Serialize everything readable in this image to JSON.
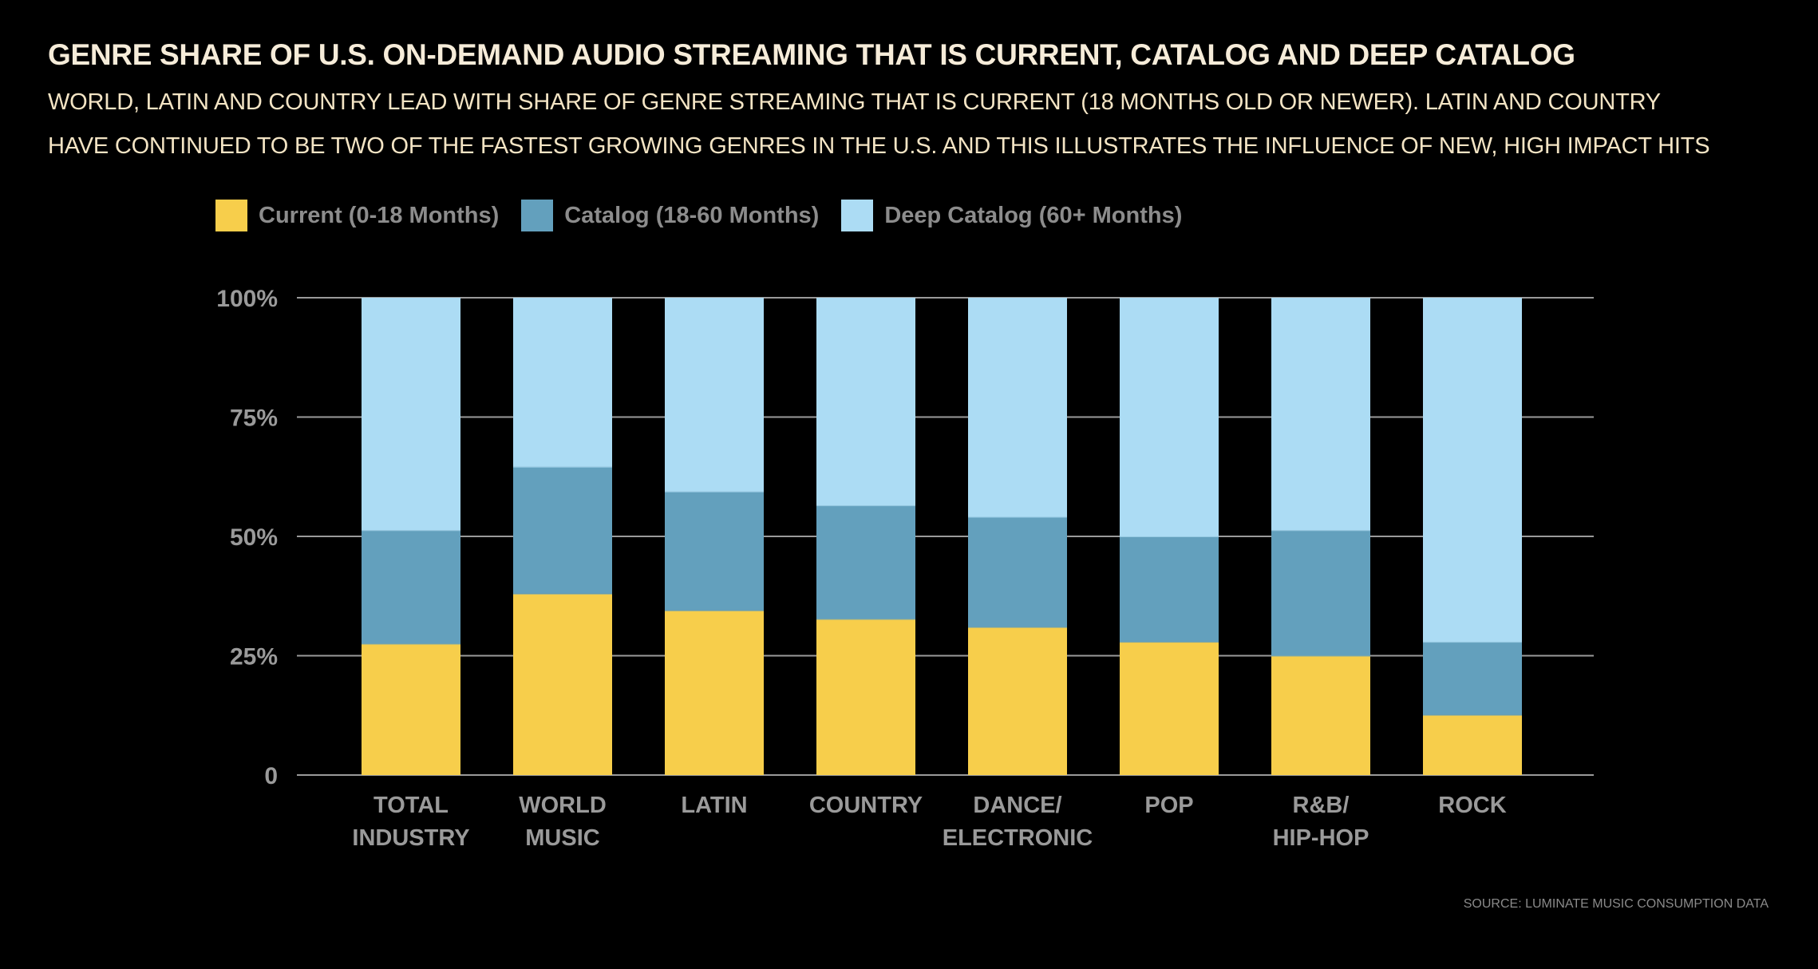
{
  "title": "GENRE SHARE OF U.S. ON-DEMAND AUDIO STREAMING THAT IS CURRENT, CATALOG AND DEEP CATALOG",
  "subtitle_lines": [
    "WORLD, LATIN AND COUNTRY LEAD WITH SHARE OF GENRE STREAMING THAT IS CURRENT (18 MONTHS OLD OR NEWER). LATIN AND COUNTRY",
    "HAVE CONTINUED TO BE TWO OF THE FASTEST GROWING GENRES IN THE U.S. AND THIS ILLUSTRATES THE INFLUENCE OF NEW, HIGH IMPACT HITS"
  ],
  "source": "SOURCE: LUMINATE MUSIC CONSUMPTION DATA",
  "chart_data": {
    "type": "bar",
    "stacked": true,
    "categories": [
      [
        "TOTAL",
        "INDUSTRY"
      ],
      [
        "WORLD",
        "MUSIC"
      ],
      [
        "LATIN"
      ],
      [
        "COUNTRY"
      ],
      [
        "DANCE/",
        "ELECTRONIC"
      ],
      [
        "POP"
      ],
      [
        "R&B/",
        "HIP-HOP"
      ],
      [
        "ROCK"
      ]
    ],
    "series": [
      {
        "name": "Current (0-18 Months)",
        "color": "#f7ce4b",
        "values": [
          27.5,
          38.0,
          34.5,
          32.7,
          31.0,
          27.9,
          25.0,
          12.6
        ]
      },
      {
        "name": "Catalog (18-60 Months)",
        "color": "#63a0bd",
        "values": [
          23.8,
          26.6,
          24.9,
          23.8,
          23.1,
          22.1,
          26.3,
          15.3
        ]
      },
      {
        "name": "Deep Catalog (60+ Months)",
        "color": "#acdcf4",
        "values": [
          48.7,
          35.4,
          40.6,
          43.5,
          45.9,
          50.0,
          48.7,
          72.1
        ]
      }
    ],
    "yticks": [
      0,
      25,
      50,
      75,
      100
    ],
    "ytick_labels": [
      "0",
      "25%",
      "50%",
      "75%",
      "100%"
    ],
    "ylim": [
      0,
      100
    ],
    "grid": true,
    "legend": "top"
  }
}
